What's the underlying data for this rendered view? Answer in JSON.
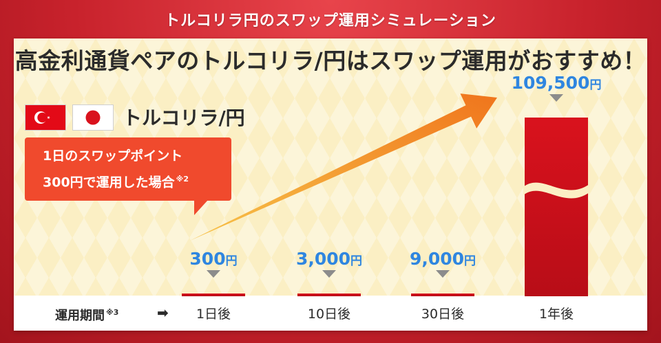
{
  "banner": {
    "title": "トルコリラ円のスワップ運用シミュレーション"
  },
  "headline": "高金利通貨ペアのトルコリラ/円はスワップ運用がおすすめ！",
  "pair": {
    "label": "トルコリラ/円"
  },
  "callout": {
    "line1": "1日のスワップポイント",
    "line2": "300円で運用した場合",
    "note": "※2"
  },
  "axis": {
    "title": "運用期間",
    "note": "※3",
    "arrow": "➡"
  },
  "colors": {
    "bar": "#d9121d",
    "value_label": "#2f86e0",
    "callout": "#f04a2d",
    "trend_arrow": "#f39a1e"
  },
  "chart_data": {
    "type": "bar",
    "categories": [
      "1日後",
      "10日後",
      "30日後",
      "1年後"
    ],
    "values": [
      300,
      3000,
      9000,
      109500
    ],
    "value_labels": [
      "300",
      "3,000",
      "9,000",
      "109,500"
    ],
    "unit": "円",
    "axis_break": true,
    "trend_arrow": true
  }
}
